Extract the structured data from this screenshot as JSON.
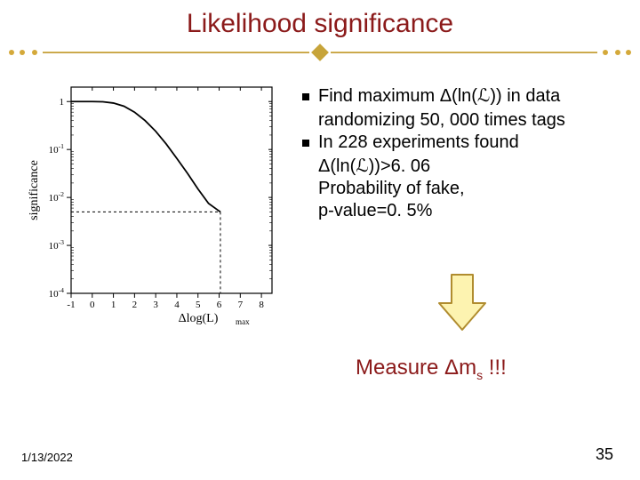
{
  "title": "Likelihood significance",
  "divider": {
    "color_light": "#e0c060",
    "color_dark": "#b8953a",
    "diamond_color": "#c7a43a"
  },
  "chart": {
    "type": "line",
    "yscale": "log",
    "xlabel": "Δlog(L)_max",
    "ylabel": "significance",
    "xlabel_fontfamily": "serif",
    "ylabel_fontfamily": "serif",
    "label_fontsize": 14,
    "tick_fontsize": 11,
    "xlim": [
      -1,
      8.5
    ],
    "ylim": [
      0.0001,
      2
    ],
    "xtick_positions": [
      -1,
      0,
      1,
      2,
      3,
      4,
      5,
      6,
      7,
      8
    ],
    "xtick_labels": [
      "-1",
      "0",
      "1",
      "2",
      "3",
      "4",
      "5",
      "6",
      "7",
      "8"
    ],
    "ytick_positions": [
      1,
      0.1,
      0.01,
      0.001,
      0.0001
    ],
    "ytick_labels": [
      "1",
      "10^-1",
      "10^-2",
      "10^-3",
      "10^-4"
    ],
    "points_x": [
      -1,
      -0.5,
      0,
      0.5,
      1,
      1.5,
      2,
      2.5,
      3,
      3.5,
      4,
      4.5,
      5,
      5.5,
      6,
      6.06
    ],
    "points_y": [
      1.0,
      1.0,
      0.998,
      0.99,
      0.93,
      0.8,
      0.6,
      0.4,
      0.24,
      0.13,
      0.065,
      0.032,
      0.015,
      0.0075,
      0.0052,
      0.005
    ],
    "marker_x": 6.06,
    "marker_y": 0.005,
    "line_color": "#000000",
    "line_width": 1.8,
    "axis_color": "#000000",
    "dash_color": "#000000",
    "background_color": "#ffffff"
  },
  "bullets": [
    {
      "lines": [
        "Find maximum Δ(ln(ℒ)) in data",
        "randomizing 50, 000 times tags"
      ]
    },
    {
      "lines": [
        "In 228 experiments found",
        "Δ(ln(ℒ))>6. 06",
        "Probability of fake,",
        "p-value=0. 5%"
      ]
    }
  ],
  "arrow": {
    "stroke": "#b08c2f",
    "fill": "#fdf3b0",
    "stroke_width": 2
  },
  "measure_text_prefix": "Measure Δm",
  "measure_sub": "s",
  "measure_text_suffix": " !!!",
  "measure_color": "#8b1a1a",
  "footer_date": "1/13/2022",
  "footer_page": "35"
}
